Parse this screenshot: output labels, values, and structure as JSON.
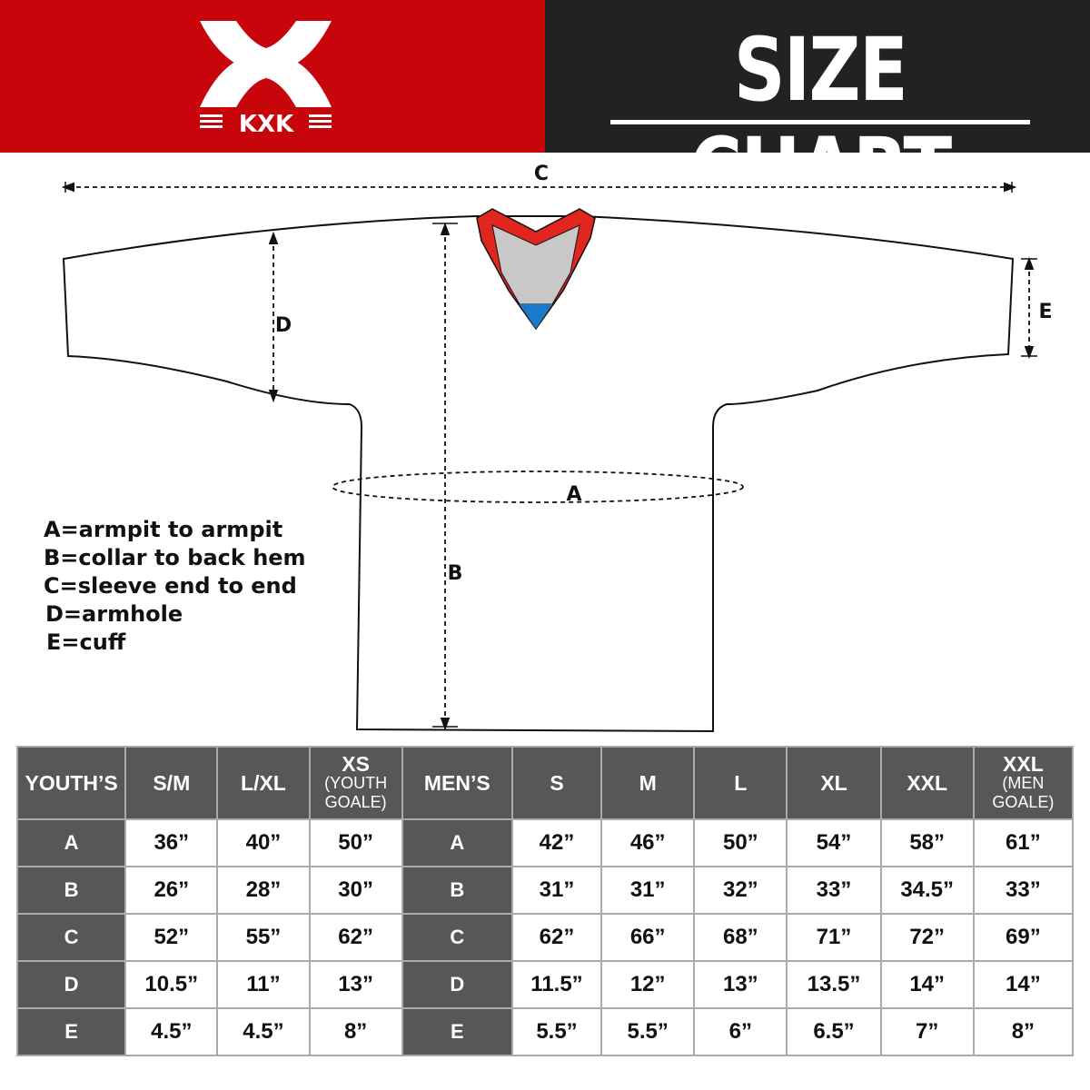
{
  "brand": {
    "name": "KXK",
    "colors": {
      "red": "#c8050a",
      "dark": "#222222",
      "header_cell": "#575757"
    }
  },
  "title": "SIZE CHART",
  "diagram": {
    "labels": {
      "a": "A",
      "b": "B",
      "c": "C",
      "d": "D",
      "e": "E"
    },
    "legend": [
      "A=armpit to armpit",
      "B=collar to back hem",
      "C=sleeve end to end",
      "D=armhole",
      "E=cuff"
    ]
  },
  "table": {
    "youth": {
      "header": "YOUTH’S",
      "columns": [
        {
          "label": "S/M"
        },
        {
          "label": "L/XL"
        },
        {
          "label": "XS",
          "sub": "(YOUTH GOALE)"
        }
      ],
      "rows": [
        {
          "key": "A",
          "values": [
            "36”",
            "40”",
            "50”"
          ]
        },
        {
          "key": "B",
          "values": [
            "26”",
            "28”",
            "30”"
          ]
        },
        {
          "key": "C",
          "values": [
            "52”",
            "55”",
            "62”"
          ]
        },
        {
          "key": "D",
          "values": [
            "10.5”",
            "11”",
            "13”"
          ]
        },
        {
          "key": "E",
          "values": [
            "4.5”",
            "4.5”",
            "8”"
          ]
        }
      ]
    },
    "men": {
      "header": "MEN’S",
      "columns": [
        {
          "label": "S"
        },
        {
          "label": "M"
        },
        {
          "label": "L"
        },
        {
          "label": "XL"
        },
        {
          "label": "XXL"
        },
        {
          "label": "XXL",
          "sub": "(MEN GOALE)"
        }
      ],
      "rows": [
        {
          "key": "A",
          "values": [
            "42”",
            "46”",
            "50”",
            "54”",
            "58”",
            "61”"
          ]
        },
        {
          "key": "B",
          "values": [
            "31”",
            "31”",
            "32”",
            "33”",
            "34.5”",
            "33”"
          ]
        },
        {
          "key": "C",
          "values": [
            "62”",
            "66”",
            "68”",
            "71”",
            "72”",
            "69”"
          ]
        },
        {
          "key": "D",
          "values": [
            "11.5”",
            "12”",
            "13”",
            "13.5”",
            "14”",
            "14”"
          ]
        },
        {
          "key": "E",
          "values": [
            "5.5”",
            "5.5”",
            "6”",
            "6.5”",
            "7”",
            "8”"
          ]
        }
      ]
    }
  }
}
